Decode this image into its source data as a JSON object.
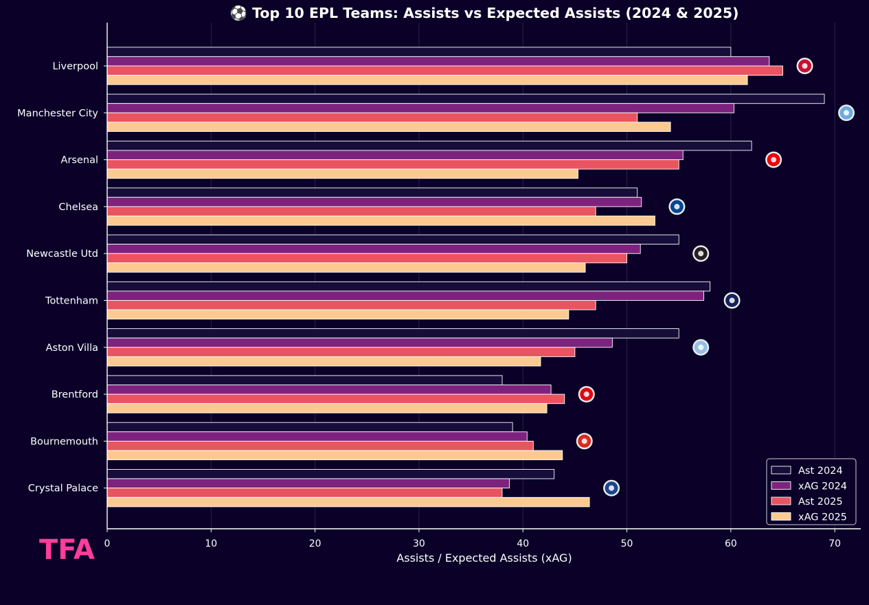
{
  "chart_data": {
    "type": "bar",
    "orientation": "horizontal",
    "title": "⚽ Top 10 EPL Teams: Assists vs Expected Assists (2024 & 2025)",
    "xlabel": "Assists / Expected Assists (xAG)",
    "ylabel": "",
    "xlim": [
      0,
      72.5
    ],
    "xticks": [
      0,
      10,
      20,
      30,
      40,
      50,
      60,
      70
    ],
    "grid": "vertical",
    "legend_position": "bottom-right",
    "categories": [
      "Liverpool",
      "Manchester City",
      "Arsenal",
      "Chelsea",
      "Newcastle Utd",
      "Tottenham",
      "Aston Villa",
      "Brentford",
      "Bournemouth",
      "Crystal Palace"
    ],
    "series": [
      {
        "name": "Ast 2024",
        "color": "#160d3a",
        "values": [
          60,
          69,
          62,
          51,
          55,
          58,
          55,
          38,
          39,
          43
        ]
      },
      {
        "name": "xAG 2024",
        "color": "#7d237d",
        "values": [
          63.7,
          60.3,
          55.4,
          51.4,
          51.3,
          57.4,
          48.6,
          42.7,
          40.4,
          38.7
        ]
      },
      {
        "name": "Ast 2025",
        "color": "#e85460",
        "values": [
          65,
          51,
          55,
          47,
          50,
          47,
          45,
          44,
          41,
          38
        ]
      },
      {
        "name": "xAG 2025",
        "color": "#fcca90",
        "values": [
          61.6,
          54.2,
          45.3,
          52.7,
          46,
          44.4,
          41.7,
          42.3,
          43.8,
          46.4
        ]
      }
    ],
    "team_badges": [
      {
        "team": "Liverpool",
        "icon": "liverpool-crest-icon",
        "color": "#c8102e"
      },
      {
        "team": "Manchester City",
        "icon": "man-city-crest-icon",
        "color": "#6cabdd"
      },
      {
        "team": "Arsenal",
        "icon": "arsenal-crest-icon",
        "color": "#ef0107"
      },
      {
        "team": "Chelsea",
        "icon": "chelsea-crest-icon",
        "color": "#034694"
      },
      {
        "team": "Newcastle Utd",
        "icon": "newcastle-crest-icon",
        "color": "#241f20"
      },
      {
        "team": "Tottenham",
        "icon": "tottenham-crest-icon",
        "color": "#132257"
      },
      {
        "team": "Aston Villa",
        "icon": "aston-villa-crest-icon",
        "color": "#95bfe5"
      },
      {
        "team": "Brentford",
        "icon": "brentford-crest-icon",
        "color": "#e30613"
      },
      {
        "team": "Bournemouth",
        "icon": "bournemouth-crest-icon",
        "color": "#da291c"
      },
      {
        "team": "Crystal Palace",
        "icon": "crystal-palace-crest-icon",
        "color": "#1b458f"
      }
    ]
  },
  "watermark": {
    "text": "TFA",
    "color": "#ff3d9a"
  },
  "colors": {
    "background": "#0a0028",
    "grid": "#2c2450",
    "axis": "#ffffff",
    "bar_edge": "#ffffff"
  }
}
